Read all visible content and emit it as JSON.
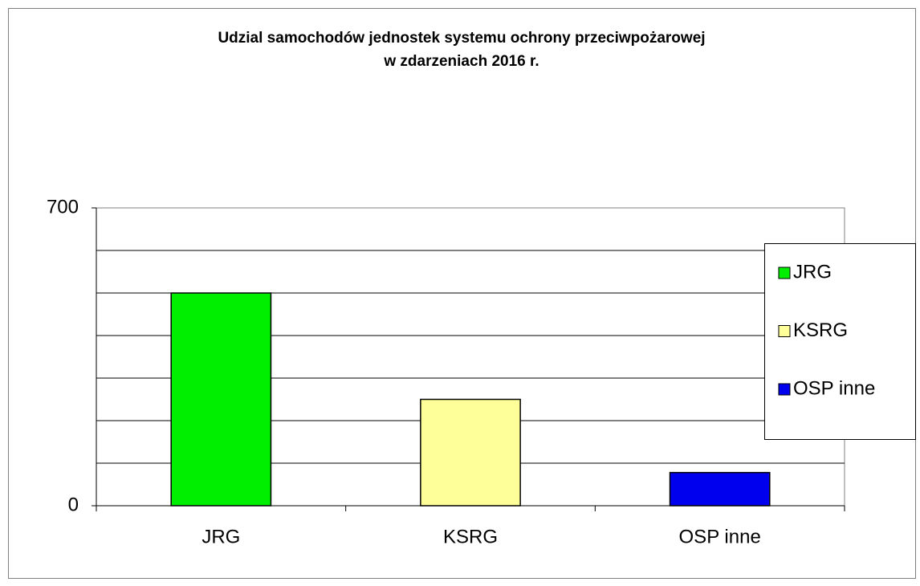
{
  "chart_data": {
    "type": "bar",
    "title": "Udzial samochodów jednostek systemu ochrony przeciwpożarowej",
    "subtitle": "w  zdarzeniach 2016 r.",
    "categories": [
      "JRG",
      "KSRG",
      "OSP inne"
    ],
    "series": [
      {
        "name": "JRG",
        "color": "#00ee00",
        "values": [
          500,
          null,
          null
        ]
      },
      {
        "name": "KSRG",
        "color": "#ffff99",
        "values": [
          null,
          250,
          null
        ]
      },
      {
        "name": "OSP inne",
        "color": "#0000ee",
        "values": [
          null,
          null,
          78
        ]
      }
    ],
    "ylim": [
      0,
      700
    ],
    "yticks": [
      0,
      700
    ],
    "ygrid": [
      100,
      200,
      300,
      400,
      500,
      600
    ],
    "grid": true,
    "legend": "right"
  }
}
